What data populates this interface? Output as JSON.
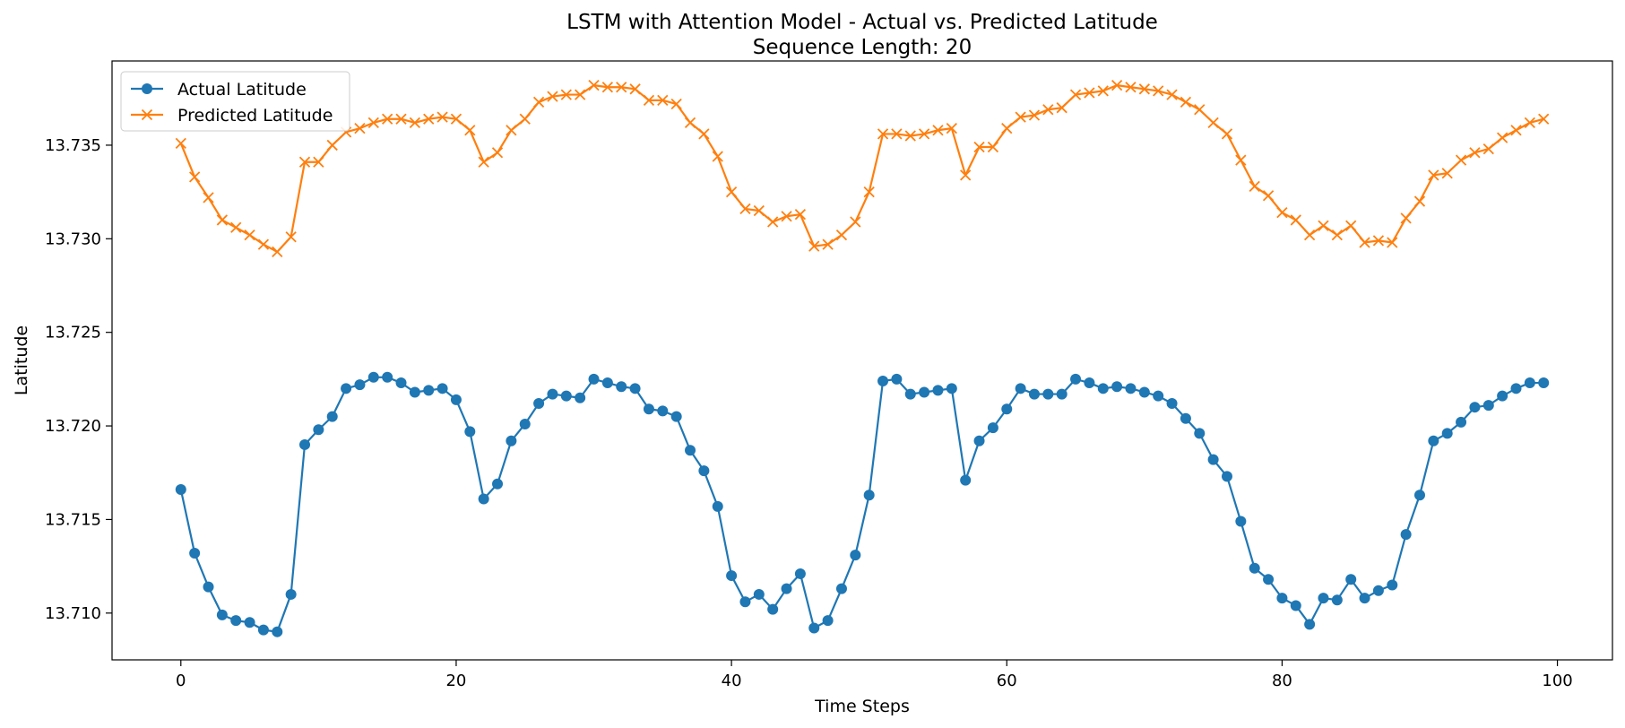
{
  "chart_data": {
    "type": "line",
    "title": "LSTM with Attention Model - Actual vs. Predicted Latitude",
    "subtitle": "Sequence Length: 20",
    "xlabel": "Time Steps",
    "ylabel": "Latitude",
    "xlim": [
      -5,
      104
    ],
    "ylim": [
      13.7075,
      13.7395
    ],
    "xticks": [
      0,
      20,
      40,
      60,
      80,
      100
    ],
    "xtick_labels": [
      "0",
      "20",
      "40",
      "60",
      "80",
      "100"
    ],
    "yticks": [
      13.71,
      13.715,
      13.72,
      13.725,
      13.73,
      13.735
    ],
    "ytick_labels": [
      "13.710",
      "13.715",
      "13.720",
      "13.725",
      "13.730",
      "13.735"
    ],
    "grid": false,
    "legend_position": "upper-left",
    "series": [
      {
        "name": "Actual Latitude",
        "color": "#1f77b4",
        "marker": "circle",
        "x": [
          0,
          1,
          2,
          3,
          4,
          5,
          6,
          7,
          8,
          9,
          10,
          11,
          12,
          13,
          14,
          15,
          16,
          17,
          18,
          19,
          20,
          21,
          22,
          23,
          24,
          25,
          26,
          27,
          28,
          29,
          30,
          31,
          32,
          33,
          34,
          35,
          36,
          37,
          38,
          39,
          40,
          41,
          42,
          43,
          44,
          45,
          46,
          47,
          48,
          49,
          50,
          51,
          52,
          53,
          54,
          55,
          56,
          57,
          58,
          59,
          60,
          61,
          62,
          63,
          64,
          65,
          66,
          67,
          68,
          69,
          70,
          71,
          72,
          73,
          74,
          75,
          76,
          77,
          78,
          79,
          80,
          81,
          82,
          83,
          84,
          85,
          86,
          87,
          88,
          89,
          90,
          91,
          92,
          93,
          94,
          95,
          96,
          97,
          98,
          99
        ],
        "values": [
          13.7166,
          13.7132,
          13.7114,
          13.7099,
          13.7096,
          13.7095,
          13.7091,
          13.709,
          13.711,
          13.719,
          13.7198,
          13.7205,
          13.722,
          13.7222,
          13.7226,
          13.7226,
          13.7223,
          13.7218,
          13.7219,
          13.722,
          13.7214,
          13.7197,
          13.7161,
          13.7169,
          13.7192,
          13.7201,
          13.7212,
          13.7217,
          13.7216,
          13.7215,
          13.7225,
          13.7223,
          13.7221,
          13.722,
          13.7209,
          13.7208,
          13.7205,
          13.7187,
          13.7176,
          13.7157,
          13.712,
          13.7106,
          13.711,
          13.7102,
          13.7113,
          13.7121,
          13.7092,
          13.7096,
          13.7113,
          13.7131,
          13.7163,
          13.7224,
          13.7225,
          13.7217,
          13.7218,
          13.7219,
          13.722,
          13.7171,
          13.7192,
          13.7199,
          13.7209,
          13.722,
          13.7217,
          13.7217,
          13.7217,
          13.7225,
          13.7223,
          13.722,
          13.7221,
          13.722,
          13.7218,
          13.7216,
          13.7212,
          13.7204,
          13.7196,
          13.7182,
          13.7173,
          13.7149,
          13.7124,
          13.7118,
          13.7108,
          13.7104,
          13.7094,
          13.7108,
          13.7107,
          13.7118,
          13.7108,
          13.7112,
          13.7115,
          13.7142,
          13.7163,
          13.7192,
          13.7196,
          13.7202,
          13.721,
          13.7211,
          13.7216,
          13.722,
          13.7223,
          13.7223
        ]
      },
      {
        "name": "Predicted Latitude",
        "color": "#ff7f0e",
        "marker": "x",
        "x": [
          0,
          1,
          2,
          3,
          4,
          5,
          6,
          7,
          8,
          9,
          10,
          11,
          12,
          13,
          14,
          15,
          16,
          17,
          18,
          19,
          20,
          21,
          22,
          23,
          24,
          25,
          26,
          27,
          28,
          29,
          30,
          31,
          32,
          33,
          34,
          35,
          36,
          37,
          38,
          39,
          40,
          41,
          42,
          43,
          44,
          45,
          46,
          47,
          48,
          49,
          50,
          51,
          52,
          53,
          54,
          55,
          56,
          57,
          58,
          59,
          60,
          61,
          62,
          63,
          64,
          65,
          66,
          67,
          68,
          69,
          70,
          71,
          72,
          73,
          74,
          75,
          76,
          77,
          78,
          79,
          80,
          81,
          82,
          83,
          84,
          85,
          86,
          87,
          88,
          89,
          90,
          91,
          92,
          93,
          94,
          95,
          96,
          97,
          98,
          99
        ],
        "values": [
          13.7351,
          13.7333,
          13.7322,
          13.731,
          13.7306,
          13.7302,
          13.7297,
          13.7293,
          13.7301,
          13.7341,
          13.7341,
          13.735,
          13.7357,
          13.7359,
          13.7362,
          13.7364,
          13.7364,
          13.7362,
          13.7364,
          13.7365,
          13.7364,
          13.7358,
          13.7341,
          13.7346,
          13.7358,
          13.7364,
          13.7373,
          13.7376,
          13.7377,
          13.7377,
          13.7382,
          13.7381,
          13.7381,
          13.738,
          13.7374,
          13.7374,
          13.7372,
          13.7362,
          13.7356,
          13.7344,
          13.7325,
          13.7316,
          13.7315,
          13.7309,
          13.7312,
          13.7313,
          13.7296,
          13.7297,
          13.7302,
          13.7309,
          13.7325,
          13.7356,
          13.7356,
          13.7355,
          13.7356,
          13.7358,
          13.7359,
          13.7334,
          13.7349,
          13.7349,
          13.7359,
          13.7365,
          13.7366,
          13.7369,
          13.737,
          13.7377,
          13.7378,
          13.7379,
          13.7382,
          13.7381,
          13.738,
          13.7379,
          13.7377,
          13.7373,
          13.7369,
          13.7362,
          13.7356,
          13.7342,
          13.7328,
          13.7323,
          13.7314,
          13.731,
          13.7302,
          13.7307,
          13.7302,
          13.7307,
          13.7298,
          13.7299,
          13.7298,
          13.7311,
          13.732,
          13.7334,
          13.7335,
          13.7342,
          13.7346,
          13.7348,
          13.7354,
          13.7358,
          13.7362,
          13.7364
        ]
      }
    ]
  }
}
